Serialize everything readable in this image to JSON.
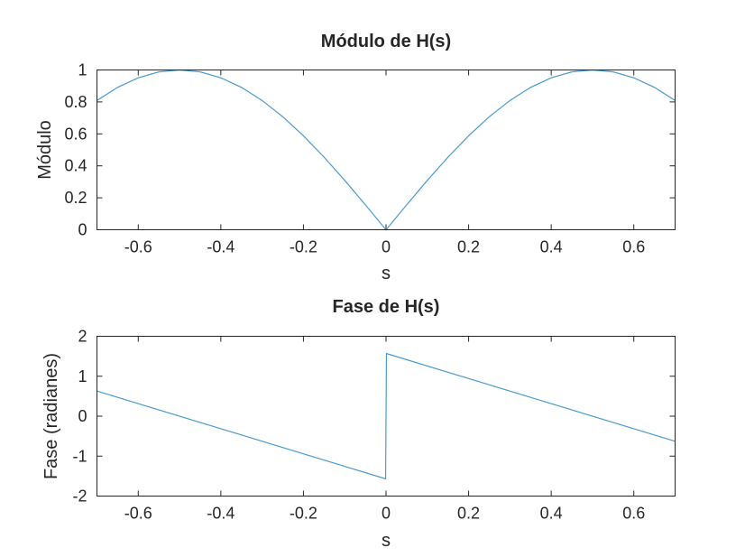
{
  "chart_data": [
    {
      "type": "line",
      "title": "Módulo de H(s)",
      "xlabel": "s",
      "ylabel": "Módulo",
      "xlim": [
        -0.7,
        0.7
      ],
      "ylim": [
        0,
        1
      ],
      "xticks": [
        -0.6,
        -0.4,
        -0.2,
        0,
        0.2,
        0.4,
        0.6
      ],
      "xtick_labels": [
        "-0.6",
        "-0.4",
        "-0.2",
        "0",
        "0.2",
        "0.4",
        "0.6"
      ],
      "yticks": [
        0,
        0.2,
        0.4,
        0.6,
        0.8,
        1
      ],
      "ytick_labels": [
        "0",
        "0.2",
        "0.4",
        "0.6",
        "0.8",
        "1"
      ],
      "grid": false,
      "color": "#4a9bd1",
      "series": [
        {
          "x": [
            -0.7,
            -0.65,
            -0.6,
            -0.55,
            -0.5,
            -0.45,
            -0.4,
            -0.35,
            -0.3,
            -0.25,
            -0.2,
            -0.15,
            -0.1,
            -0.05,
            -0.001,
            0,
            0.001,
            0.05,
            0.1,
            0.15,
            0.2,
            0.25,
            0.3,
            0.35,
            0.4,
            0.45,
            0.5,
            0.55,
            0.6,
            0.65,
            0.7
          ],
          "y": [
            0.809,
            0.891,
            0.951,
            0.988,
            1.0,
            0.988,
            0.951,
            0.891,
            0.809,
            0.707,
            0.588,
            0.454,
            0.309,
            0.156,
            0.003,
            0.0,
            0.003,
            0.156,
            0.309,
            0.454,
            0.588,
            0.707,
            0.809,
            0.891,
            0.951,
            0.988,
            1.0,
            0.988,
            0.951,
            0.891,
            0.809
          ]
        }
      ]
    },
    {
      "type": "line",
      "title": "Fase de H(s)",
      "xlabel": "s",
      "ylabel": "Fase (radianes)",
      "xlim": [
        -0.7,
        0.7
      ],
      "ylim": [
        -2,
        2
      ],
      "xticks": [
        -0.6,
        -0.4,
        -0.2,
        0,
        0.2,
        0.4,
        0.6
      ],
      "xtick_labels": [
        "-0.6",
        "-0.4",
        "-0.2",
        "0",
        "0.2",
        "0.4",
        "0.6"
      ],
      "yticks": [
        -2,
        -1,
        0,
        1,
        2
      ],
      "ytick_labels": [
        "-2",
        "-1",
        "0",
        "1",
        "2"
      ],
      "grid": false,
      "color": "#4a9bd1",
      "series": [
        {
          "x": [
            -0.7,
            -0.35,
            -0.001,
            0.001,
            0.35,
            0.7
          ],
          "y": [
            0.628,
            -0.471,
            -1.568,
            1.568,
            0.471,
            -0.628
          ]
        }
      ]
    }
  ]
}
